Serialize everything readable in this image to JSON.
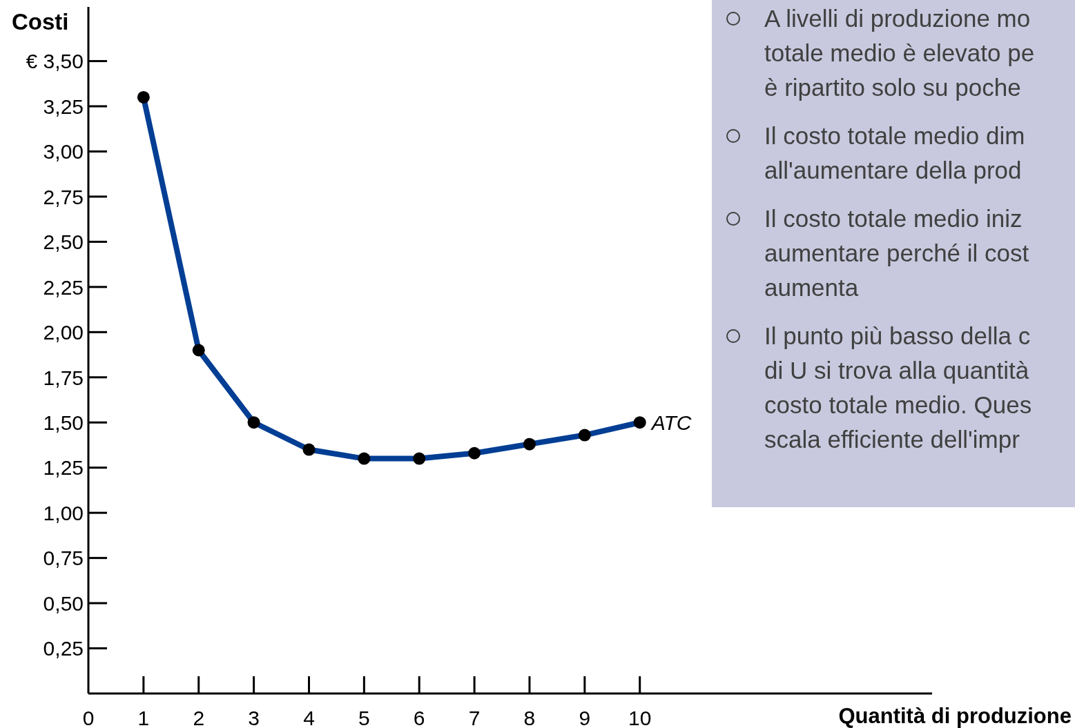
{
  "chart_data": {
    "type": "line",
    "ylabel": "Costi",
    "xlabel": "Quantità di produzione",
    "x": [
      1,
      2,
      3,
      4,
      5,
      6,
      7,
      8,
      9,
      10
    ],
    "series": [
      {
        "name": "ATC",
        "color": "#023e94",
        "values": [
          3.3,
          1.9,
          1.5,
          1.35,
          1.3,
          1.3,
          1.33,
          1.38,
          1.43,
          1.5
        ]
      }
    ],
    "xlim": [
      0,
      15.3
    ],
    "xticks": [
      0,
      1,
      2,
      3,
      4,
      5,
      6,
      7,
      8,
      9,
      10
    ],
    "ylim": [
      0,
      3.8
    ],
    "yticks": [
      {
        "value": 0.25,
        "label": "0,25"
      },
      {
        "value": 0.5,
        "label": "0,50"
      },
      {
        "value": 0.75,
        "label": "0,75"
      },
      {
        "value": 1,
        "label": "1,00"
      },
      {
        "value": 1.25,
        "label": "1,25"
      },
      {
        "value": 1.5,
        "label": "1,50"
      },
      {
        "value": 1.75,
        "label": "1,75"
      },
      {
        "value": 2,
        "label": "2,00"
      },
      {
        "value": 2.25,
        "label": "2,25"
      },
      {
        "value": 2.5,
        "label": "2,50"
      },
      {
        "value": 2.75,
        "label": "2,75"
      },
      {
        "value": 3,
        "label": "3,00"
      },
      {
        "value": 3.25,
        "label": "3,25"
      },
      {
        "value": 3.5,
        "label": "€ 3,50"
      }
    ],
    "marker": "circle",
    "line_style": "solid",
    "annotations": [
      "A livelli di produzione mo\ntotale medio è elevato pe\nè ripartito solo su poche",
      "Il costo totale medio dim\nall'aumentare della prod",
      "Il costo totale medio iniz\naumentare perché il cost\naumenta",
      "Il punto più basso della c\ndi U si trova alla quantità\ncosto totale medio. Ques\nscala efficiente dell'impr"
    ]
  }
}
